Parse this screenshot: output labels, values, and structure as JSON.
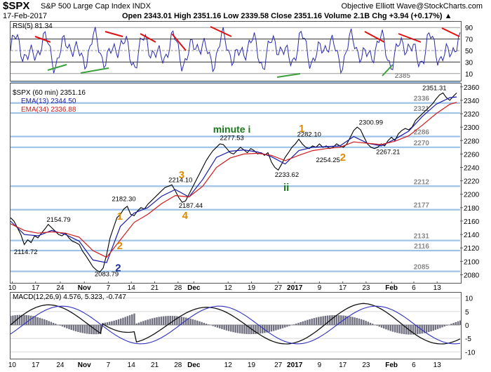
{
  "header": {
    "symbol": "$SPX",
    "subtitle": "S&P 500 Large Cap Index  INDX",
    "credit": "Objective Elliott Wave@StockCharts.com",
    "date": "17-Feb-2017",
    "ohlc": "Open 2343.01  High 2351.16  Low 2339.58  Close 2351.16  Volume 2.1B  Chg +3.94 (+0.17%) ▲"
  },
  "rsi": {
    "label": "RSI(5) 81.34",
    "levels": [
      "90",
      "70",
      "50",
      "30",
      "10"
    ],
    "level_values": [
      90,
      70,
      50,
      30,
      10
    ],
    "ylim": [
      0,
      100
    ],
    "extra_label": "2385"
  },
  "price": {
    "legend_title": "$SPX (60 min) 2351.16",
    "ema13": "EMA(13) 2344.50",
    "ema34": "EMA(34) 2336.88",
    "colors": {
      "price": "#000000",
      "ema13": "#1a1aa6",
      "ema34": "#d11a1a",
      "hlines": "#9ec3e6"
    }
  },
  "macd": {
    "label": "MACD(12,26,9) 4.576, 5.323, -0.747",
    "ylim": [
      -12,
      12
    ]
  },
  "x_labels": [
    {
      "t": "10",
      "x": 0.5
    },
    {
      "t": "17",
      "x": 7.3
    },
    {
      "t": "24",
      "x": 14.5
    },
    {
      "t": "Nov",
      "x": 21.5
    },
    {
      "t": "7",
      "x": 28.5
    },
    {
      "t": "14",
      "x": 35.2
    },
    {
      "t": "21",
      "x": 42.0
    },
    {
      "t": "28",
      "x": 48.8
    },
    {
      "t": "Dec",
      "x": 53.4
    },
    {
      "t": "12",
      "x": 63.4
    },
    {
      "t": "19",
      "x": 70.2
    },
    {
      "t": "27",
      "x": 78.0
    },
    {
      "t": "2017",
      "x": 82.8
    },
    {
      "t": "9",
      "x": 90.0
    },
    {
      "t": "17",
      "x": 96.8
    },
    {
      "t": "23",
      "x": 103.6
    },
    {
      "t": "Feb",
      "x": 111.0
    },
    {
      "t": "6",
      "x": 117.5
    },
    {
      "t": "13",
      "x": 124.3
    }
  ],
  "chart_data": {
    "type": "line",
    "title": "$SPX (60 min)",
    "ylim": [
      2070,
      2365
    ],
    "xlim": [
      0,
      131
    ],
    "y_ticks": [
      2080,
      2100,
      2120,
      2140,
      2160,
      2180,
      2200,
      2220,
      2240,
      2260,
      2280,
      2300,
      2320,
      2340,
      2360
    ],
    "hlevels": [
      {
        "v": 2385,
        "label": "2385"
      },
      {
        "v": 2336,
        "label": "2336"
      },
      {
        "v": 2321,
        "label": "2321"
      },
      {
        "v": 2286,
        "label": "2286"
      },
      {
        "v": 2270,
        "label": "2270"
      },
      {
        "v": 2212,
        "label": "2212"
      },
      {
        "v": 2177,
        "label": "2177"
      },
      {
        "v": 2131,
        "label": "2131"
      },
      {
        "v": 2116,
        "label": "2116"
      },
      {
        "v": 2085,
        "label": "2085"
      }
    ],
    "price_labels": [
      {
        "t": "2154.79",
        "x": 10.5,
        "y": 2159
      },
      {
        "t": "2114.72",
        "x": 1.0,
        "y": 2111
      },
      {
        "t": "2083.79",
        "x": 24.5,
        "y": 2078
      },
      {
        "t": "2182.30",
        "x": 29.5,
        "y": 2190
      },
      {
        "t": "2214.10",
        "x": 46.0,
        "y": 2218
      },
      {
        "t": "2187.44",
        "x": 49.0,
        "y": 2180
      },
      {
        "t": "2277.53",
        "x": 61.0,
        "y": 2281
      },
      {
        "t": "2233.62",
        "x": 77.0,
        "y": 2226
      },
      {
        "t": "2282.10",
        "x": 83.5,
        "y": 2286
      },
      {
        "t": "2254.25",
        "x": 89.0,
        "y": 2248
      },
      {
        "t": "2300.99",
        "x": 101.5,
        "y": 2304
      },
      {
        "t": "2267.21",
        "x": 106.5,
        "y": 2260
      },
      {
        "t": "2351.31",
        "x": 120.0,
        "y": 2355
      }
    ],
    "wave_labels": [
      {
        "t": "1",
        "x": 31.0,
        "y": 2162,
        "color": "#e08a00"
      },
      {
        "t": "2",
        "x": 31.0,
        "y": 2118,
        "color": "#e08a00"
      },
      {
        "t": "2",
        "x": 30.5,
        "y": 2085,
        "color": "#1a2aa0"
      },
      {
        "t": "3",
        "x": 49.0,
        "y": 2224,
        "color": "#e08a00"
      },
      {
        "t": "4",
        "x": 50.0,
        "y": 2163,
        "color": "#e08a00"
      },
      {
        "t": "minute i",
        "x": 59.0,
        "y": 2292,
        "color": "#1a7a1a"
      },
      {
        "t": "ii",
        "x": 79.5,
        "y": 2205,
        "color": "#1a7a1a"
      },
      {
        "t": "1",
        "x": 84.0,
        "y": 2293,
        "color": "#e08a00"
      },
      {
        "t": "2",
        "x": 96.0,
        "y": 2250,
        "color": "#e08a00"
      }
    ],
    "series": [
      {
        "name": "$SPX",
        "x": [
          0,
          1,
          2,
          3,
          4,
          5,
          6,
          7,
          8,
          9,
          10,
          11,
          12,
          13,
          14,
          15,
          16,
          17,
          18,
          19,
          20,
          21,
          22,
          23,
          24,
          25,
          26,
          27,
          28,
          29,
          30,
          31,
          32,
          33,
          34,
          35,
          36,
          37,
          38,
          39,
          40,
          41,
          42,
          43,
          44,
          45,
          46,
          47,
          48,
          49,
          50,
          51,
          52,
          53,
          54,
          55,
          56,
          57,
          58,
          59,
          60,
          61,
          62,
          63,
          64,
          65,
          66,
          67,
          68,
          69,
          70,
          71,
          72,
          73,
          74,
          75,
          76,
          77,
          78,
          79,
          80,
          81,
          82,
          83,
          84,
          85,
          86,
          87,
          88,
          89,
          90,
          91,
          92,
          93,
          94,
          95,
          96,
          97,
          98,
          99,
          100,
          101,
          102,
          103,
          104,
          105,
          106,
          107,
          108,
          109,
          110,
          111,
          112,
          113,
          114,
          115,
          116,
          117,
          118,
          119,
          120,
          121,
          122,
          123,
          124,
          125,
          126,
          127,
          128,
          129,
          130
        ],
        "values": [
          2165,
          2160,
          2150,
          2140,
          2125,
          2132,
          2128,
          2138,
          2135,
          2142,
          2148,
          2155,
          2150,
          2145,
          2140,
          2138,
          2142,
          2135,
          2130,
          2128,
          2125,
          2115,
          2108,
          2100,
          2092,
          2087,
          2084,
          2090,
          2110,
          2135,
          2150,
          2165,
          2170,
          2178,
          2182,
          2170,
          2168,
          2175,
          2180,
          2178,
          2185,
          2190,
          2195,
          2200,
          2205,
          2210,
          2212,
          2214,
          2205,
          2195,
          2188,
          2190,
          2200,
          2210,
          2220,
          2230,
          2240,
          2250,
          2258,
          2265,
          2270,
          2275,
          2274,
          2268,
          2262,
          2260,
          2265,
          2270,
          2266,
          2262,
          2268,
          2265,
          2260,
          2262,
          2258,
          2262,
          2248,
          2240,
          2236,
          2245,
          2255,
          2262,
          2270,
          2275,
          2282,
          2275,
          2270,
          2268,
          2272,
          2270,
          2275,
          2270,
          2272,
          2268,
          2270,
          2275,
          2272,
          2270,
          2275,
          2285,
          2295,
          2300,
          2296,
          2285,
          2275,
          2270,
          2268,
          2270,
          2275,
          2272,
          2280,
          2285,
          2280,
          2290,
          2295,
          2298,
          2296,
          2300,
          2310,
          2315,
          2320,
          2325,
          2330,
          2335,
          2342,
          2348,
          2351,
          2344,
          2340,
          2346,
          2351
        ]
      },
      {
        "name": "EMA(13)",
        "x": [
          0,
          4,
          8,
          12,
          16,
          20,
          24,
          28,
          32,
          36,
          40,
          44,
          48,
          52,
          56,
          60,
          64,
          68,
          72,
          76,
          80,
          84,
          88,
          92,
          96,
          100,
          104,
          108,
          112,
          116,
          120,
          124,
          128,
          130
        ],
        "values": [
          2160,
          2140,
          2138,
          2146,
          2140,
          2130,
          2102,
          2098,
          2152,
          2172,
          2180,
          2197,
          2207,
          2196,
          2222,
          2255,
          2264,
          2266,
          2263,
          2256,
          2245,
          2265,
          2270,
          2271,
          2272,
          2286,
          2276,
          2272,
          2282,
          2294,
          2316,
          2334,
          2344,
          2345
        ]
      },
      {
        "name": "EMA(34)",
        "x": [
          0,
          4,
          8,
          12,
          16,
          20,
          24,
          28,
          32,
          36,
          40,
          44,
          48,
          52,
          56,
          60,
          64,
          68,
          72,
          76,
          80,
          84,
          88,
          92,
          96,
          100,
          104,
          108,
          112,
          116,
          120,
          124,
          128,
          130
        ],
        "values": [
          2156,
          2146,
          2142,
          2144,
          2142,
          2136,
          2116,
          2106,
          2132,
          2158,
          2170,
          2186,
          2198,
          2196,
          2212,
          2240,
          2254,
          2260,
          2261,
          2258,
          2250,
          2258,
          2265,
          2268,
          2270,
          2278,
          2276,
          2274,
          2279,
          2287,
          2303,
          2320,
          2334,
          2337
        ]
      }
    ]
  }
}
